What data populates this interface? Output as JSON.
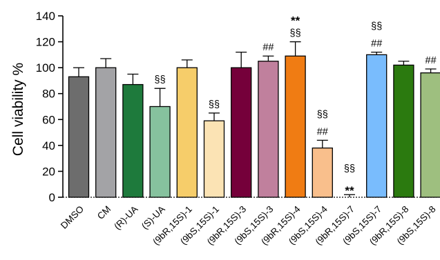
{
  "chart_data": {
    "type": "bar",
    "title": "",
    "xlabel": "",
    "ylabel": "Cell viability %",
    "ylim": [
      0,
      140
    ],
    "yticks": [
      0,
      20,
      40,
      60,
      80,
      100,
      120,
      140
    ],
    "grid": false,
    "legend": "none",
    "categories": [
      "DMSO",
      "CM",
      "(R)-UA",
      "(S)-UA",
      "(9bR,15S)-1",
      "(9bS,15S)-1",
      "(9bR,15S)-3",
      "(9bS,15S)-3",
      "(9bR,15S)-4",
      "(9bS,15S)-4",
      "(9bR,15S)-7",
      "(9bS,15S)-7",
      "(9bR,15S)-8",
      "(9bS,15S)-8"
    ],
    "values": [
      93,
      100,
      87,
      70,
      100,
      59,
      100,
      105,
      109,
      38,
      0,
      110,
      102,
      96
    ],
    "errors": [
      7,
      7,
      8,
      14,
      6,
      6,
      12,
      4,
      11,
      6,
      2,
      2,
      3,
      3
    ],
    "colors": [
      "#6d6d6d",
      "#a3a3a6",
      "#1e7a3c",
      "#86c29e",
      "#f6cd6a",
      "#fbe3b4",
      "#75003a",
      "#c0809d",
      "#f07c13",
      "#f9bf8c",
      "#ffffff",
      "#79bcfd",
      "#2b7a0f",
      "#9ebf7f"
    ],
    "annotations": [
      {
        "category": "(S)-UA",
        "marks": [
          "§§"
        ]
      },
      {
        "category": "(9bS,15S)-1",
        "marks": [
          "§§"
        ]
      },
      {
        "category": "(9bS,15S)-3",
        "marks": [
          "##"
        ]
      },
      {
        "category": "(9bR,15S)-4",
        "marks": [
          "**",
          "§§"
        ]
      },
      {
        "category": "(9bS,15S)-4",
        "marks": [
          "§§",
          "##"
        ]
      },
      {
        "category": "(9bR,15S)-7",
        "marks": [
          "§§",
          "**"
        ]
      },
      {
        "category": "(9bS,15S)-7",
        "marks": [
          "§§",
          "##"
        ]
      },
      {
        "category": "(9bS,15S)-8",
        "marks": [
          "##"
        ]
      }
    ]
  }
}
